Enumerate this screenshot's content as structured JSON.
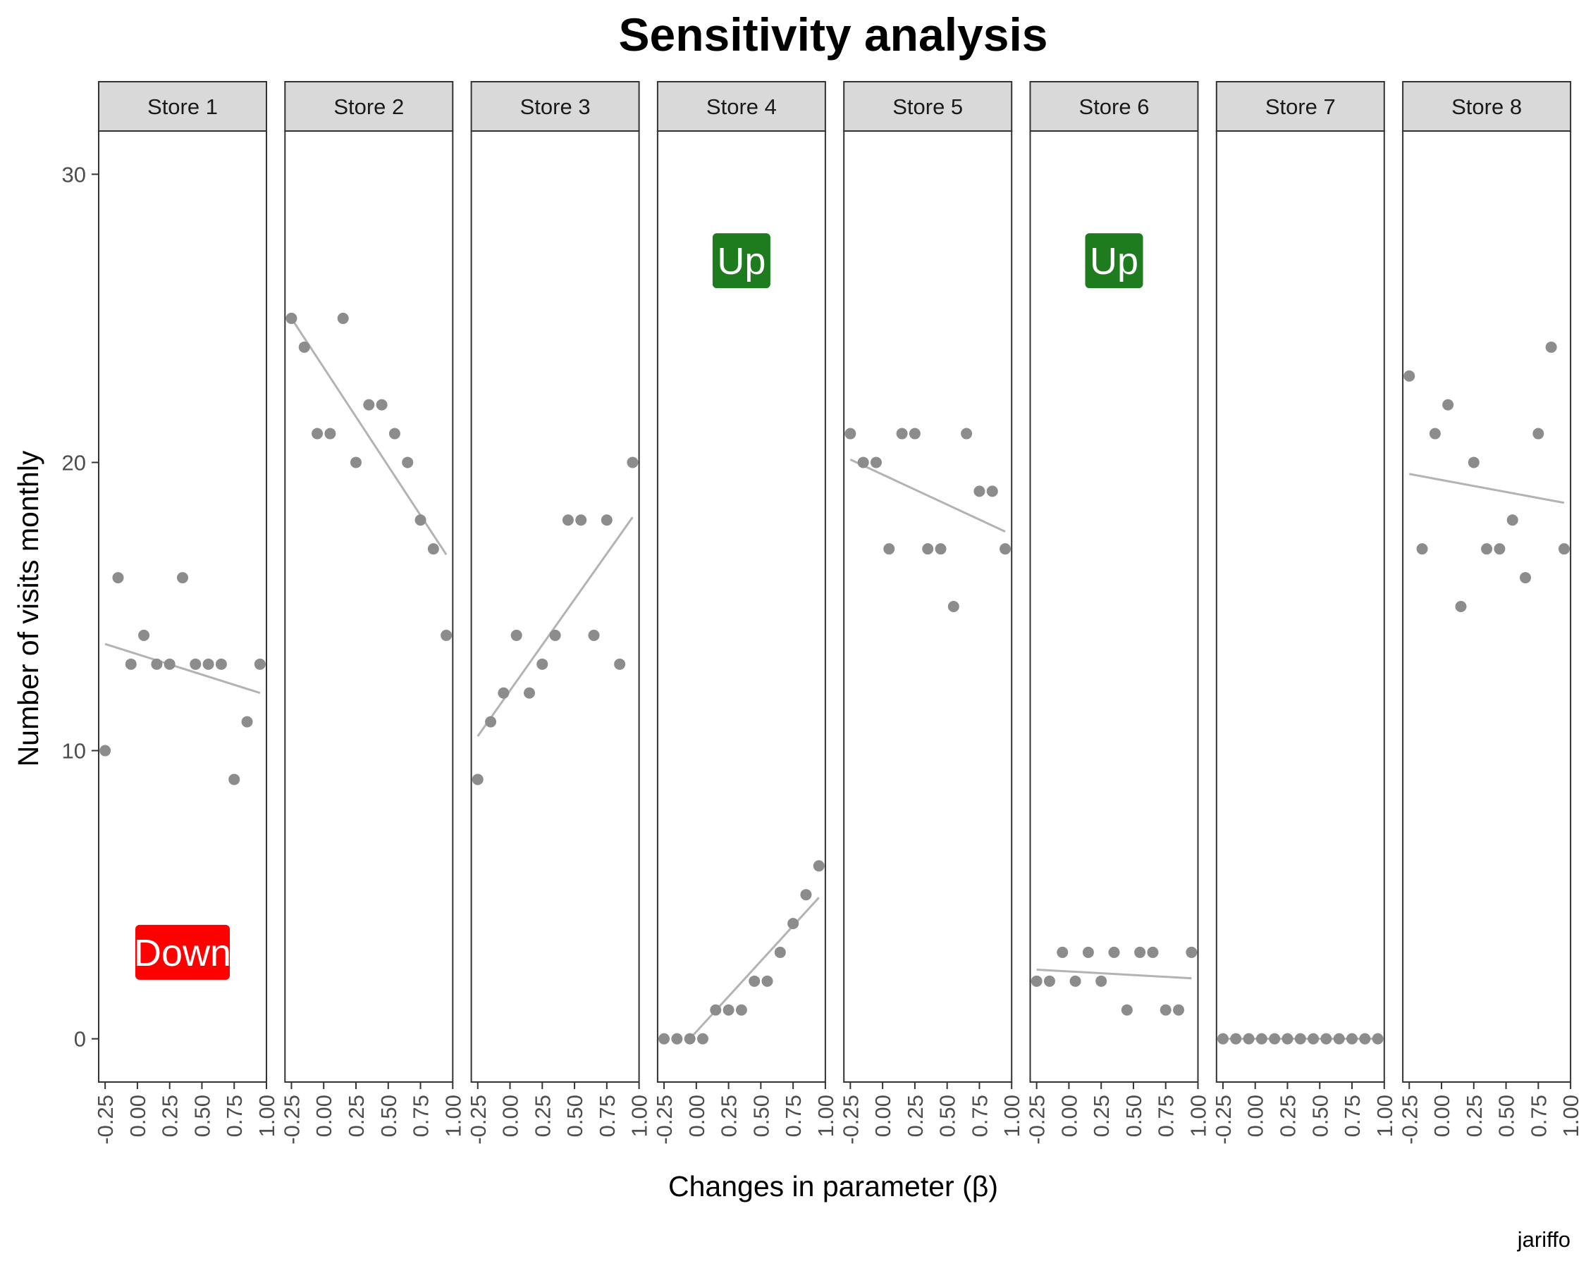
{
  "chart_data": {
    "type": "scatter",
    "title": "Sensitivity analysis",
    "xlabel": "Changes in parameter (β)",
    "ylabel": "Number of visits monthly",
    "caption": "jariffo",
    "x": [
      -0.25,
      -0.15,
      -0.05,
      0.05,
      0.15,
      0.25,
      0.35,
      0.45,
      0.55,
      0.65,
      0.75,
      0.85,
      0.95
    ],
    "xlim": [
      -0.3,
      1.0
    ],
    "ylim": [
      -1.5,
      31.5
    ],
    "x_ticks": [
      -0.25,
      0.0,
      0.25,
      0.5,
      0.75,
      1.0
    ],
    "x_tick_labels": [
      "-0.25",
      "0.00",
      "0.25",
      "0.50",
      "0.75",
      "1.00"
    ],
    "y_ticks": [
      0,
      10,
      20,
      30
    ],
    "y_tick_labels": [
      "0",
      "10",
      "20",
      "30"
    ],
    "point_color": "#8c8c8c",
    "trend_color": "#b3b3b3",
    "strip_color": "#d9d9d9",
    "series": [
      {
        "name": "Store 1",
        "values": [
          10,
          16,
          13,
          14,
          13,
          13,
          16,
          13,
          13,
          13,
          9,
          11,
          13
        ],
        "trend": [
          13.7,
          12.0
        ],
        "label": {
          "text": "Down",
          "y": 3,
          "color": "#ff0000"
        }
      },
      {
        "name": "Store 2",
        "values": [
          25,
          24,
          21,
          21,
          25,
          20,
          22,
          22,
          21,
          20,
          18,
          17,
          14
        ],
        "trend": [
          25.0,
          16.8
        ]
      },
      {
        "name": "Store 3",
        "values": [
          9,
          11,
          12,
          14,
          12,
          13,
          14,
          18,
          18,
          14,
          18,
          13,
          20
        ],
        "trend": [
          10.5,
          18.1
        ]
      },
      {
        "name": "Store 4",
        "values": [
          0,
          0,
          0,
          0,
          1,
          1,
          1,
          2,
          2,
          3,
          4,
          5,
          6
        ],
        "trend": [
          0.0,
          4.9
        ],
        "trend_x": [
          -0.05,
          0.95
        ],
        "label": {
          "text": "Up",
          "y": 27,
          "color": "#1e7b1e"
        }
      },
      {
        "name": "Store 5",
        "values": [
          21,
          20,
          20,
          17,
          21,
          21,
          17,
          17,
          15,
          21,
          19,
          19,
          17
        ],
        "trend": [
          20.1,
          17.6
        ]
      },
      {
        "name": "Store 6",
        "values": [
          2,
          2,
          3,
          2,
          3,
          2,
          3,
          1,
          3,
          3,
          1,
          1,
          3
        ],
        "trend": [
          2.4,
          2.1
        ],
        "label": {
          "text": "Up",
          "y": 27,
          "color": "#1e7b1e"
        }
      },
      {
        "name": "Store 7",
        "values": [
          0,
          0,
          0,
          0,
          0,
          0,
          0,
          0,
          0,
          0,
          0,
          0,
          0
        ],
        "trend": [
          0,
          0
        ]
      },
      {
        "name": "Store 8",
        "values": [
          23,
          17,
          21,
          22,
          15,
          20,
          17,
          17,
          18,
          16,
          21,
          24,
          17
        ],
        "trend": [
          19.6,
          18.6
        ]
      }
    ]
  }
}
